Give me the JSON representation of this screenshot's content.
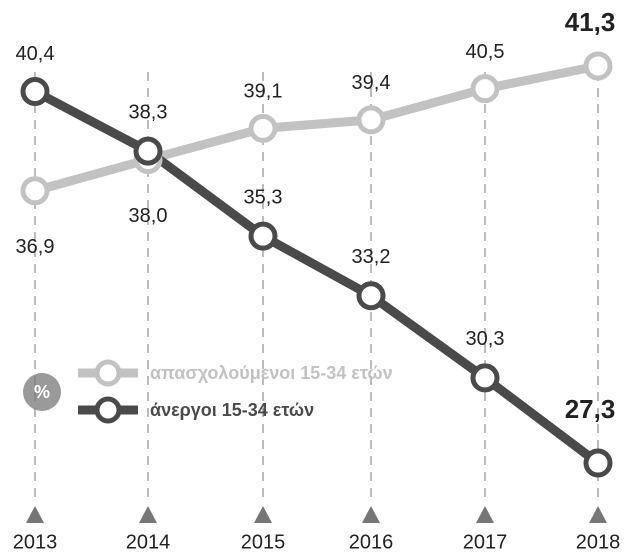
{
  "chart_data": {
    "type": "line",
    "categories": [
      "2013",
      "2014",
      "2015",
      "2016",
      "2017",
      "2018"
    ],
    "series": [
      {
        "name": "απασχολούμενοι 15-34 ετών",
        "color": "#c2c2c2",
        "values": [
          36.9,
          38.0,
          39.1,
          39.4,
          40.5,
          41.3
        ],
        "value_labels": [
          "36,9",
          "38,0",
          "39,1",
          "39,4",
          "40,5",
          "41,3"
        ]
      },
      {
        "name": "άνεργοι 15-34 ετών",
        "color": "#4a4a4a",
        "values": [
          40.4,
          38.3,
          35.3,
          33.2,
          30.3,
          27.3
        ],
        "value_labels": [
          "40,4",
          "38,3",
          "35,3",
          "33,2",
          "30,3",
          "27,3"
        ]
      }
    ],
    "legend_badge": "%"
  }
}
